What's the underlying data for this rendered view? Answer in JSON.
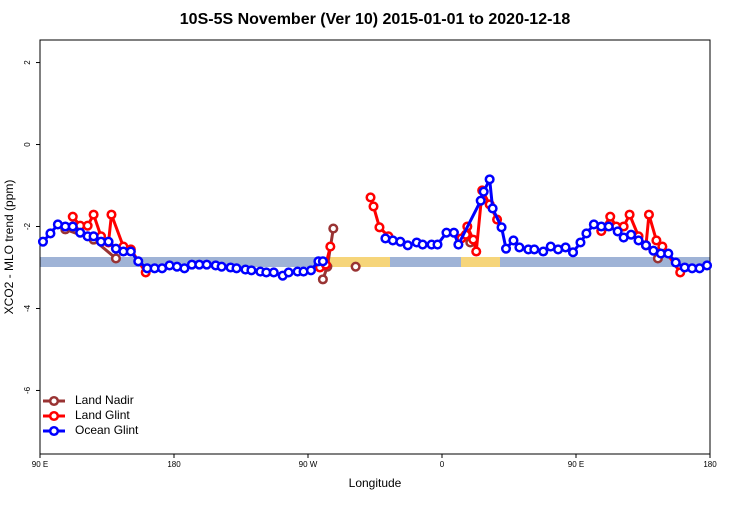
{
  "chart_data": {
    "type": "line",
    "title": "10S-5S November (Ver 10)   2015-01-01 to 2020-12-18",
    "xlabel": "Longitude",
    "ylabel": "XCO2 - MLO trend (ppm)",
    "xlim": [
      90,
      540
    ],
    "xticks": [
      {
        "value": 90,
        "label": "90 E"
      },
      180,
      {
        "value": 270,
        "label": "90 W"
      },
      {
        "value": 360,
        "label": "0"
      },
      {
        "value": 450,
        "label": "90 E"
      },
      {
        "value": 540,
        "label": "180"
      }
    ],
    "ylim": [
      -7.55,
      2.55
    ],
    "yticks": [
      -6,
      -4,
      -2,
      0,
      2
    ],
    "legend": "bottomleft",
    "series": [
      {
        "name": "Land Nadir",
        "color": "#993333",
        "x": [
          107,
          126,
          141,
          200,
          280,
          283,
          287,
          295,
          302,
          330,
          379,
          420,
          467,
          490,
          505
        ],
        "values": [
          -2.07,
          -2.32,
          -2.78,
          null,
          -3.29,
          -2.98,
          -2.05,
          null,
          -2.98,
          null,
          -2.39,
          null,
          -2.1,
          null,
          -2.78
        ]
      },
      {
        "name": "Land Glint",
        "color": "#ff0000",
        "x": [
          112,
          117,
          122,
          126,
          131,
          136,
          138,
          146,
          151,
          161,
          240,
          278,
          282,
          285,
          300,
          312,
          314,
          318,
          324,
          340,
          373,
          376,
          377,
          381,
          383,
          387,
          392,
          397,
          420,
          467,
          473,
          477,
          482,
          486,
          492,
          497,
          499,
          504,
          508,
          520
        ],
        "values": [
          -1.76,
          -1.98,
          -1.98,
          -1.71,
          -2.24,
          -2.39,
          -1.71,
          -2.49,
          -2.56,
          -3.12,
          null,
          -3.0,
          -2.93,
          -2.49,
          null,
          -1.29,
          -1.51,
          -2.02,
          -2.24,
          null,
          -2.29,
          -2.2,
          -2.0,
          -2.32,
          -2.61,
          -1.12,
          -1.46,
          -1.83,
          null,
          -2.11,
          -1.76,
          -2.0,
          -2.0,
          -1.71,
          -2.24,
          -2.46,
          -1.71,
          -2.34,
          -2.49,
          -3.12
        ]
      },
      {
        "name": "Ocean Glint",
        "color": "#0000ff",
        "x": [
          92,
          97,
          102,
          107,
          112,
          117,
          122,
          126,
          131,
          136,
          141,
          146,
          151,
          156,
          162,
          167,
          172,
          177,
          182,
          187,
          192,
          197,
          202,
          208,
          212,
          218,
          222,
          228,
          232,
          238,
          242,
          247,
          253,
          257,
          263,
          267,
          272,
          277,
          280,
          300,
          322,
          327,
          332,
          337,
          343,
          347,
          353,
          357,
          363,
          368,
          371,
          386,
          388,
          392,
          394,
          400,
          403,
          408,
          412,
          418,
          422,
          428,
          433,
          438,
          443,
          448,
          453,
          457,
          462,
          467,
          472,
          478,
          482,
          487,
          492,
          497,
          502,
          507,
          512,
          517,
          523,
          528,
          533,
          538
        ],
        "values": [
          -2.37,
          -2.17,
          -1.95,
          -2.0,
          -2.0,
          -2.15,
          -2.24,
          -2.24,
          -2.37,
          -2.37,
          -2.54,
          -2.61,
          -2.61,
          -2.85,
          -3.02,
          -3.02,
          -3.02,
          -2.95,
          -2.98,
          -3.02,
          -2.93,
          -2.93,
          -2.93,
          -2.95,
          -2.98,
          -3.0,
          -3.02,
          -3.05,
          -3.07,
          -3.1,
          -3.12,
          -3.12,
          -3.2,
          -3.12,
          -3.1,
          -3.1,
          -3.07,
          -2.85,
          -2.85,
          null,
          -2.29,
          -2.34,
          -2.37,
          -2.46,
          -2.39,
          -2.44,
          -2.44,
          -2.44,
          -2.15,
          -2.15,
          -2.44,
          -1.37,
          -1.15,
          -0.85,
          -1.56,
          -2.02,
          -2.54,
          -2.34,
          -2.51,
          -2.56,
          -2.56,
          -2.61,
          -2.49,
          -2.56,
          -2.51,
          -2.63,
          -2.39,
          -2.17,
          -1.95,
          -2.0,
          -2.0,
          -2.12,
          -2.27,
          -2.2,
          -2.34,
          -2.46,
          -2.59,
          -2.66,
          -2.66,
          -2.88,
          -3.0,
          -3.02,
          -3.02,
          -2.95
        ]
      }
    ]
  }
}
